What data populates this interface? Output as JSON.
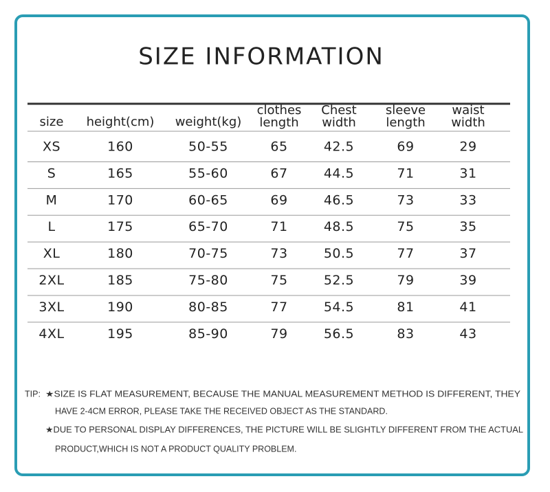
{
  "title": "SIZE INFORMATION",
  "table": {
    "headers": [
      [
        "size"
      ],
      [
        "height(cm)"
      ],
      [
        "weight(kg)"
      ],
      [
        "clothes",
        "length"
      ],
      [
        "Chest",
        "width"
      ],
      [
        "sleeve",
        "length"
      ],
      [
        "waist",
        "width"
      ]
    ],
    "rows": [
      [
        "XS",
        160,
        "50-55",
        65,
        42.5,
        69,
        29
      ],
      [
        "S",
        165,
        "55-60",
        67,
        44.5,
        71,
        31
      ],
      [
        "M",
        170,
        "60-65",
        69,
        46.5,
        73,
        33
      ],
      [
        "L",
        175,
        "65-70",
        71,
        48.5,
        75,
        35
      ],
      [
        "XL",
        180,
        "70-75",
        73,
        50.5,
        77,
        37
      ],
      [
        "2XL",
        185,
        "75-80",
        75,
        52.5,
        79,
        39
      ],
      [
        "3XL",
        190,
        "80-85",
        77,
        54.5,
        81,
        41
      ],
      [
        "4XL",
        195,
        "85-90",
        79,
        56.5,
        83,
        43
      ]
    ]
  },
  "tips": {
    "label": "TIP:",
    "items": [
      [
        "★SIZE IS FLAT MEASUREMENT, BECAUSE THE MANUAL MEASUREMENT METHOD IS DIFFERENT, THEY",
        "HAVE 2-4CM ERROR, PLEASE TAKE THE RECEIVED OBJECT AS THE STANDARD."
      ],
      [
        "★DUE TO PERSONAL DISPLAY DIFFERENCES, THE PICTURE WILL BE SLIGHTLY DIFFERENT FROM THE ACTUAL",
        "PRODUCT,WHICH IS NOT A PRODUCT QUALITY PROBLEM."
      ]
    ]
  }
}
